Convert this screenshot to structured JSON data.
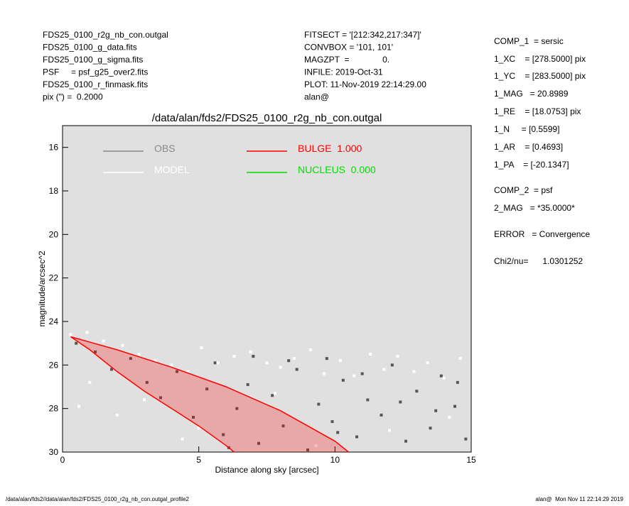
{
  "header": {
    "left": [
      "FDS25_0100_r2g_nb_con.outgal",
      "FDS25_0100_g_data.fits",
      "FDS25_0100_g_sigma.fits",
      "PSF     = psf_g25_over2.fits",
      "FDS25_0100_r_finmask.fits",
      "pix (\") =  0.2000"
    ],
    "middle": [
      "FITSECT = '[212:342,217:347]'",
      "CONVBOX = '101, 101'",
      "MAGZPT  =              0.",
      "INFILE: 2019-Oct-31",
      "PLOT: 11-Nov-2019 22:14:29.00",
      "alan@"
    ],
    "right": [
      "COMP_1  = sersic",
      "1_XC    = [278.5000] pix",
      "1_YC    = [283.5000] pix",
      "1_MAG   = 20.8989",
      "1_RE    = [18.0753] pix",
      "1_N     = [0.5599]",
      "1_AR    = [0.4693]",
      "1_PA    = [-20.1347]",
      "COMP_2  = psf",
      "2_MAG   = *35.0000*",
      "ERROR   = Convergence",
      "Chi2/nu=      1.0301252"
    ]
  },
  "footer": {
    "left": "/data/alan/fds2//data/alan/fds2/FDS25_0100_r2g_nb_con.outgal_profile2",
    "right": "alan@  Mon Nov 11 22:14:29 2019"
  },
  "chart_data": {
    "type": "scatter",
    "title": "/data/alan/fds2/FDS25_0100_r2g_nb_con.outgal",
    "x_label": "Distance along sky [arcsec]",
    "y_label": "magnitude/arcsec^2",
    "xlim": [
      0,
      15
    ],
    "ylim": [
      30,
      15
    ],
    "xticks": [
      0,
      5,
      10,
      15
    ],
    "yticks": [
      16,
      18,
      20,
      22,
      24,
      26,
      28,
      30
    ],
    "series": [
      {
        "name": "OBS",
        "color": "#555555",
        "x": [
          0.5,
          1.2,
          1.8,
          2.5,
          3.1,
          3.6,
          4.2,
          4.8,
          5.3,
          5.9,
          6.4,
          6.8,
          7.2,
          7.7,
          8.1,
          8.6,
          9.0,
          9.4,
          9.9,
          10.3,
          10.8,
          11.2,
          11.7,
          12.1,
          12.6,
          13.0,
          13.5,
          13.9,
          14.4,
          14.8,
          5.6,
          7.0,
          8.3,
          9.7,
          11.0,
          12.4,
          13.7,
          14.5,
          6.1,
          10.1
        ],
        "values": [
          25.0,
          25.4,
          26.2,
          25.7,
          26.8,
          27.5,
          26.3,
          28.4,
          27.1,
          29.2,
          28.0,
          26.9,
          29.6,
          27.4,
          28.8,
          26.2,
          29.9,
          27.8,
          28.6,
          26.7,
          29.3,
          27.6,
          28.3,
          26.0,
          29.5,
          27.2,
          28.9,
          26.5,
          27.9,
          29.4,
          25.9,
          25.6,
          25.8,
          25.7,
          26.4,
          27.7,
          28.1,
          26.8,
          29.8,
          29.1
        ]
      },
      {
        "name": "MODEL",
        "color": "#ffffff",
        "x": [
          0.3,
          0.9,
          1.5,
          2.2,
          2.8,
          3.4,
          4.0,
          4.6,
          5.1,
          5.7,
          6.3,
          6.9,
          7.5,
          8.0,
          8.5,
          9.1,
          9.6,
          10.2,
          10.7,
          11.3,
          11.8,
          12.3,
          12.9,
          13.4,
          14.0,
          14.6,
          1.0,
          3.0,
          5.0,
          7.8,
          9.3,
          12.0,
          14.2,
          0.6,
          2.0,
          4.4
        ],
        "values": [
          24.6,
          24.5,
          24.9,
          25.1,
          25.5,
          25.8,
          26.0,
          26.3,
          25.2,
          25.9,
          25.6,
          25.4,
          25.9,
          26.1,
          25.7,
          25.3,
          26.4,
          25.8,
          26.5,
          25.5,
          26.2,
          25.6,
          26.3,
          25.9,
          26.6,
          25.7,
          26.8,
          27.6,
          28.9,
          27.3,
          29.7,
          29.0,
          28.4,
          27.9,
          28.3,
          29.4
        ]
      },
      {
        "name": "BULGE  1.000",
        "color": "#ff0000",
        "x": [
          0.3,
          2,
          4,
          6,
          8,
          10,
          10.5
        ],
        "values": [
          24.7,
          25.3,
          26.1,
          27.0,
          28.1,
          29.5,
          30.0
        ],
        "x_inner": [
          0.3,
          1,
          2,
          3,
          4,
          5,
          6,
          6.3
        ],
        "values_inner": [
          24.7,
          25.3,
          26.3,
          27.2,
          28.0,
          28.8,
          29.7,
          30.0
        ]
      },
      {
        "name": "NUCLEUS  0.000",
        "color": "#00dd00",
        "x": [],
        "values": []
      }
    ]
  }
}
